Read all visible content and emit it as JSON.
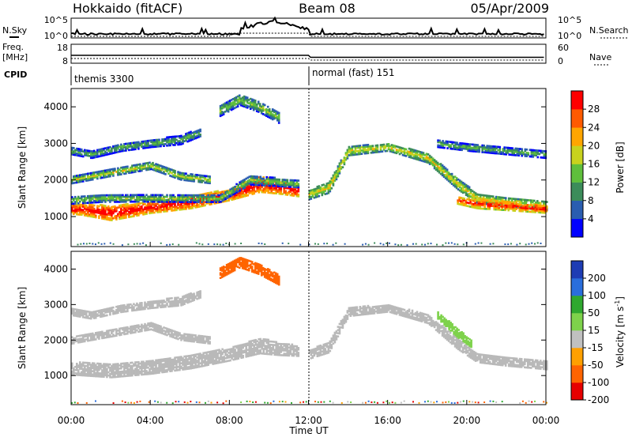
{
  "header": {
    "site": "Hokkaido (fitACF)",
    "beam": "Beam 08",
    "date": "05/Apr/2009"
  },
  "summary_panel": {
    "nsky_label": "N.Sky",
    "nsearch_label": "N.Search",
    "noise_ticks": [
      "10^5",
      "10^0"
    ],
    "freq_label_1": "Freq.",
    "freq_label_2": "[MHz]",
    "freq_ticks": [
      "18",
      "8"
    ],
    "nave_label": "Nave",
    "nave_ticks": [
      "60",
      "0"
    ],
    "cpid_label": "CPID",
    "cpid_segments": [
      "themis 3300",
      "normal (fast) 151"
    ]
  },
  "axes": {
    "ylabel": "Slant Range [km]",
    "xlabel": "Time UT",
    "x_ticks": [
      "00:00",
      "04:00",
      "08:00",
      "12:00",
      "16:00",
      "20:00",
      "00:00"
    ],
    "y_ticks": [
      "1000",
      "2000",
      "3000",
      "4000"
    ]
  },
  "colorbars": {
    "power": {
      "label": "Power [dB]",
      "ticks": [
        "28",
        "24",
        "20",
        "16",
        "12",
        "8",
        "4"
      ]
    },
    "velocity": {
      "label": "Velocity [m s",
      "label_sup": "-1",
      "label_end": "]",
      "ticks": [
        "200",
        "100",
        "50",
        "15",
        "-15",
        "-50",
        "-100",
        "-200"
      ]
    }
  },
  "colors": {
    "power_scale": [
      "#0000ff",
      "#2a5db0",
      "#3c8c5a",
      "#5fbf3c",
      "#c8d21e",
      "#ffa500",
      "#ff5a00",
      "#ff0000"
    ],
    "velocity_scale": [
      "#1e3cb4",
      "#2a6edc",
      "#2fa82f",
      "#7ed24b",
      "#c0c0c0",
      "#ffa000",
      "#ff6400",
      "#e60000"
    ],
    "ground_scatter": "#b9b9b9"
  },
  "chart_data": [
    {
      "type": "heatmap",
      "name": "power",
      "x_range_hours": [
        0,
        24
      ],
      "y_range_km": [
        180,
        4500
      ],
      "bands": [
        {
          "t": [
            0,
            0.5,
            2,
            4,
            6,
            8,
            9.5,
            10.5,
            11.5
          ],
          "center": [
            1200,
            1200,
            1100,
            1250,
            1400,
            1600,
            1900,
            1800,
            1700
          ],
          "width": [
            250,
            300,
            400,
            300,
            350,
            300,
            450,
            350,
            300
          ],
          "power": 26
        },
        {
          "t": [
            0,
            1.5,
            3.5,
            6,
            7.5,
            9,
            11.5
          ],
          "center": [
            1450,
            1500,
            1500,
            1500,
            1500,
            2000,
            1900
          ],
          "width": [
            200,
            200,
            180,
            200,
            200,
            250,
            200
          ],
          "power": 10
        },
        {
          "t": [
            0,
            1,
            2.5,
            4,
            5.5,
            6.5
          ],
          "center": [
            2800,
            2700,
            2900,
            3000,
            3100,
            3300
          ],
          "width": [
            200,
            200,
            220,
            200,
            250,
            200
          ],
          "power": 8
        },
        {
          "t": [
            0,
            2,
            4,
            5.5,
            7
          ],
          "center": [
            2000,
            2200,
            2400,
            2100,
            2000
          ],
          "width": [
            180,
            180,
            200,
            180,
            180
          ],
          "power": 12
        },
        {
          "t": [
            12,
            13,
            14,
            16,
            18,
            19.5,
            20.5,
            22,
            24
          ],
          "center": [
            1600,
            1800,
            2800,
            2900,
            2600,
            1900,
            1500,
            1400,
            1300
          ],
          "width": [
            250,
            300,
            250,
            200,
            250,
            300,
            250,
            250,
            250
          ],
          "power": 14
        },
        {
          "t": [
            19.5,
            20.5,
            22,
            24
          ],
          "center": [
            1450,
            1350,
            1300,
            1200
          ],
          "width": [
            200,
            250,
            250,
            200
          ],
          "power": 24
        },
        {
          "t": [
            18.5,
            20,
            22,
            24
          ],
          "center": [
            3000,
            2900,
            2800,
            2700
          ],
          "width": [
            200,
            200,
            200,
            200
          ],
          "power": 8
        },
        {
          "t": [
            7.5,
            8.5,
            9.5,
            10.5
          ],
          "center": [
            3900,
            4200,
            4000,
            3700
          ],
          "width": [
            300,
            300,
            300,
            300
          ],
          "power": 10
        }
      ]
    },
    {
      "type": "heatmap",
      "name": "velocity",
      "x_range_hours": [
        0,
        24
      ],
      "y_range_km": [
        180,
        4500
      ],
      "bands": [
        {
          "t": [
            0,
            2,
            4,
            6,
            8,
            9.5,
            10.5,
            11.5
          ],
          "center": [
            1200,
            1150,
            1250,
            1400,
            1600,
            1850,
            1750,
            1700
          ],
          "width": [
            350,
            400,
            400,
            400,
            350,
            450,
            350,
            300
          ],
          "velocity": 0
        },
        {
          "t": [
            0,
            2,
            4,
            5.5,
            7
          ],
          "center": [
            2000,
            2200,
            2400,
            2100,
            2000
          ],
          "width": [
            200,
            200,
            200,
            200,
            200
          ],
          "velocity": 0
        },
        {
          "t": [
            0,
            1,
            2.5,
            4,
            5.5,
            6.5
          ],
          "center": [
            2800,
            2700,
            2900,
            3000,
            3100,
            3300
          ],
          "width": [
            200,
            200,
            220,
            200,
            250,
            200
          ],
          "velocity": 0
        },
        {
          "t": [
            12,
            13,
            14,
            16,
            18,
            19.5,
            20.5,
            22,
            24
          ],
          "center": [
            1600,
            1800,
            2800,
            2900,
            2600,
            1900,
            1500,
            1400,
            1300
          ],
          "width": [
            250,
            300,
            250,
            200,
            250,
            300,
            250,
            250,
            250
          ],
          "velocity": 0
        },
        {
          "t": [
            18.5,
            19.5,
            20.2
          ],
          "center": [
            2700,
            2200,
            1900
          ],
          "width": [
            200,
            250,
            200
          ],
          "velocity": 40
        },
        {
          "t": [
            7.5,
            8.5,
            9.5,
            10.5
          ],
          "center": [
            3900,
            4200,
            4000,
            3700
          ],
          "width": [
            300,
            300,
            300,
            300
          ],
          "velocity": -60
        }
      ]
    }
  ]
}
